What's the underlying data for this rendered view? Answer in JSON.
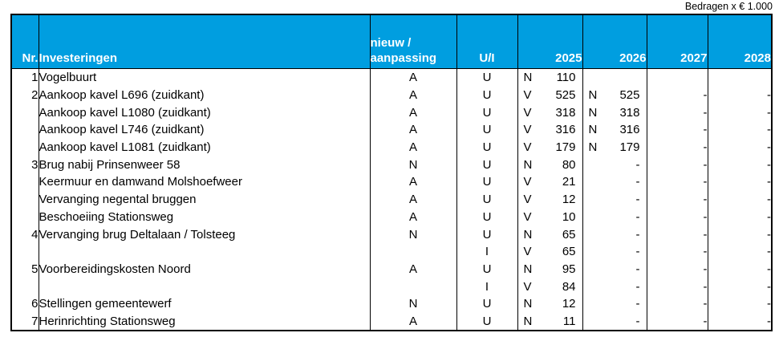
{
  "note": "Bedragen x € 1.000",
  "colors": {
    "header_bg": "#009EE0",
    "header_text": "#FFFFFF",
    "border": "#000000",
    "body_text": "#000000"
  },
  "table": {
    "headers": {
      "nr": "Nr.",
      "investeringen": "Investeringen",
      "nieuw_line1": "nieuw /",
      "nieuw_line2": "aanpassing",
      "ui": "U/I",
      "y2025": "2025",
      "y2026": "2026",
      "y2027": "2027",
      "y2028": "2028"
    },
    "rows": [
      {
        "nr": "1",
        "name": "Vogelbuurt",
        "type": "A",
        "ui": "U",
        "y2025_code": "N",
        "y2025": "110",
        "y2026_code": "",
        "y2026": "",
        "y2027": "",
        "y2028": ""
      },
      {
        "nr": "2",
        "name": "Aankoop kavel L696 (zuidkant)",
        "type": "A",
        "ui": "U",
        "y2025_code": "V",
        "y2025": "525",
        "y2026_code": "N",
        "y2026": "525",
        "y2027": "-",
        "y2028": "-"
      },
      {
        "nr": "",
        "name": "Aankoop kavel L1080 (zuidkant)",
        "type": "A",
        "ui": "U",
        "y2025_code": "V",
        "y2025": "318",
        "y2026_code": "N",
        "y2026": "318",
        "y2027": "-",
        "y2028": "-"
      },
      {
        "nr": "",
        "name": "Aankoop kavel L746 (zuidkant)",
        "type": "A",
        "ui": "U",
        "y2025_code": "V",
        "y2025": "316",
        "y2026_code": "N",
        "y2026": "316",
        "y2027": "-",
        "y2028": "-"
      },
      {
        "nr": "",
        "name": "Aankoop kavel L1081 (zuidkant)",
        "type": "A",
        "ui": "U",
        "y2025_code": "V",
        "y2025": "179",
        "y2026_code": "N",
        "y2026": "179",
        "y2027": "-",
        "y2028": "-"
      },
      {
        "nr": "3",
        "name": "Brug nabij Prinsenweer 58",
        "type": "N",
        "ui": "U",
        "y2025_code": "N",
        "y2025": "80",
        "y2026_code": "",
        "y2026": "-",
        "y2027": "-",
        "y2028": "-"
      },
      {
        "nr": "",
        "name": "Keermuur en damwand Molshoefweer",
        "type": "A",
        "ui": "U",
        "y2025_code": "V",
        "y2025": "21",
        "y2026_code": "",
        "y2026": "-",
        "y2027": "-",
        "y2028": "-"
      },
      {
        "nr": "",
        "name": "Vervanging negental bruggen",
        "type": "A",
        "ui": "U",
        "y2025_code": "V",
        "y2025": "12",
        "y2026_code": "",
        "y2026": "-",
        "y2027": "-",
        "y2028": "-"
      },
      {
        "nr": "",
        "name": "Beschoeiing Stationsweg",
        "type": "A",
        "ui": "U",
        "y2025_code": "V",
        "y2025": "10",
        "y2026_code": "",
        "y2026": "-",
        "y2027": "-",
        "y2028": "-"
      },
      {
        "nr": "4",
        "name": "Vervanging brug Deltalaan / Tolsteeg",
        "type": "N",
        "ui": "U",
        "y2025_code": "N",
        "y2025": "65",
        "y2026_code": "",
        "y2026": "-",
        "y2027": "-",
        "y2028": "-"
      },
      {
        "nr": "",
        "name": "",
        "type": "",
        "ui": "I",
        "y2025_code": "V",
        "y2025": "65",
        "y2026_code": "",
        "y2026": "-",
        "y2027": "-",
        "y2028": "-"
      },
      {
        "nr": "5",
        "name": "Voorbereidingskosten Noord",
        "type": "A",
        "ui": "U",
        "y2025_code": "N",
        "y2025": "95",
        "y2026_code": "",
        "y2026": "-",
        "y2027": "-",
        "y2028": "-"
      },
      {
        "nr": "",
        "name": "",
        "type": "",
        "ui": "I",
        "y2025_code": "V",
        "y2025": "84",
        "y2026_code": "",
        "y2026": "-",
        "y2027": "-",
        "y2028": "-"
      },
      {
        "nr": "6",
        "name": "Stellingen gemeentewerf",
        "type": "N",
        "ui": "U",
        "y2025_code": "N",
        "y2025": "12",
        "y2026_code": "",
        "y2026": "-",
        "y2027": "-",
        "y2028": "-"
      },
      {
        "nr": "7",
        "name": "Herinrichting Stationsweg",
        "type": "A",
        "ui": "U",
        "y2025_code": "N",
        "y2025": "11",
        "y2026_code": "",
        "y2026": "-",
        "y2027": "-",
        "y2028": "-"
      }
    ]
  }
}
